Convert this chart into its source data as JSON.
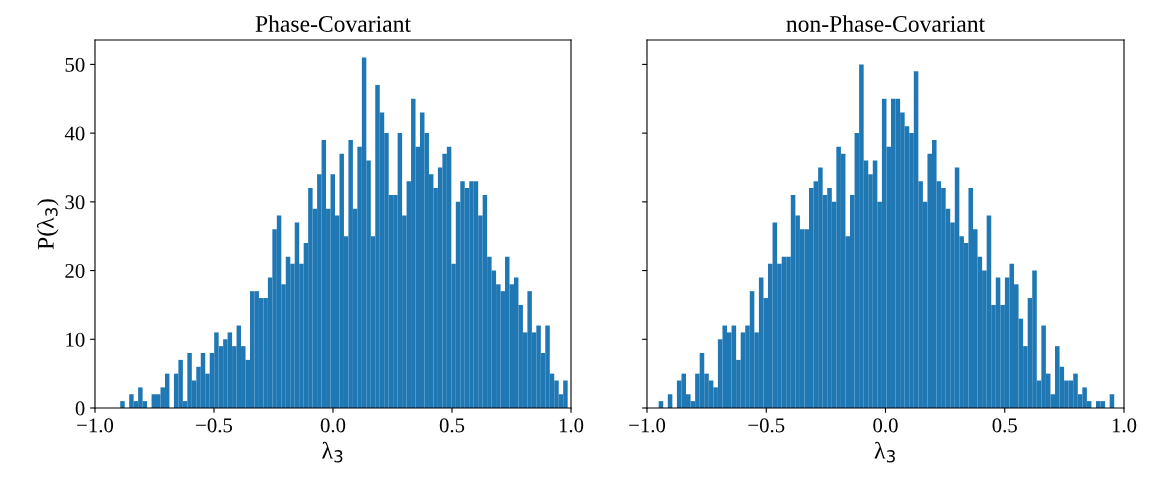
{
  "chart_data": [
    {
      "type": "histogram",
      "title": "Phase-Covariant",
      "xlabel": "λ$_{3}$",
      "ylabel": "P(λ$_{3}$)",
      "color": "#1f77b4",
      "bins": [
        -0.894,
        -0.8752,
        -0.8564,
        -0.8376,
        -0.8188,
        -0.8,
        -0.7812,
        -0.7624,
        -0.7436,
        -0.7248,
        -0.706,
        -0.6872,
        -0.6684,
        -0.6496,
        -0.6308,
        -0.612,
        -0.5932,
        -0.5744,
        -0.5556,
        -0.5368,
        -0.518,
        -0.4992,
        -0.4804,
        -0.4616,
        -0.4428,
        -0.424,
        -0.4052,
        -0.3864,
        -0.3676,
        -0.3488,
        -0.33,
        -0.3112,
        -0.2924,
        -0.2736,
        -0.2548,
        -0.236,
        -0.2172,
        -0.1984,
        -0.1796,
        -0.1608,
        -0.142,
        -0.1232,
        -0.1044,
        -0.0856,
        -0.0668,
        -0.048,
        -0.0292,
        -0.0104,
        0.0084,
        0.0272,
        0.046,
        0.0648,
        0.0836,
        0.1024,
        0.1212,
        0.14,
        0.1588,
        0.1776,
        0.1964,
        0.2152,
        0.234,
        0.2528,
        0.2716,
        0.2904,
        0.3092,
        0.328,
        0.3468,
        0.3656,
        0.3844,
        0.4032,
        0.422,
        0.4408,
        0.4596,
        0.4784,
        0.4972,
        0.516,
        0.5348,
        0.5536,
        0.5724,
        0.5912,
        0.61,
        0.6288,
        0.6476,
        0.6664,
        0.6852,
        0.704,
        0.7228,
        0.7416,
        0.7604,
        0.7792,
        0.798,
        0.8168,
        0.8356,
        0.8544,
        0.8732,
        0.892,
        0.9108,
        0.9296,
        0.9484,
        0.9672,
        0.986
      ],
      "values": [
        1,
        0,
        2,
        1,
        3,
        1,
        0,
        2,
        2,
        3,
        5,
        0,
        5,
        7,
        1,
        8,
        4,
        6,
        8,
        5,
        8,
        11,
        9,
        10,
        11,
        9,
        12,
        9,
        7,
        17,
        17,
        16,
        16,
        19,
        26,
        28,
        18,
        22,
        21,
        27,
        21,
        24,
        32,
        29,
        34,
        39,
        29,
        34,
        28,
        37,
        25,
        39,
        29,
        38,
        51,
        36,
        25,
        47,
        43,
        40,
        31,
        31,
        40,
        28,
        33,
        45,
        38,
        43,
        40,
        34,
        32,
        35,
        37,
        38,
        21,
        30,
        33,
        32,
        33,
        33,
        28,
        31,
        22,
        20,
        18,
        17,
        22,
        18,
        19,
        15,
        11,
        17,
        11,
        12,
        8,
        12,
        5,
        4,
        2,
        4
      ],
      "xlim": [
        -1.0,
        1.0
      ],
      "xticks": [
        {
          "value": -1.0,
          "label": "−1.0"
        },
        {
          "value": -0.5,
          "label": "−0.5"
        },
        {
          "value": 0,
          "label": "0.0"
        },
        {
          "value": 0.5,
          "label": "0.5"
        },
        {
          "value": 1,
          "label": "1.0"
        }
      ],
      "ylim": [
        0,
        53.55
      ],
      "yticks": [
        0,
        10,
        20,
        30,
        40,
        50
      ]
    },
    {
      "type": "histogram",
      "title": "non-Phase-Covariant",
      "xlabel": "λ$_{3}$",
      "color": "#1f77b4",
      "bins": [
        -0.951,
        -0.9319,
        -0.9128,
        -0.8937,
        -0.8746,
        -0.8555,
        -0.8364,
        -0.8173,
        -0.7982,
        -0.7791,
        -0.76,
        -0.7409,
        -0.7218,
        -0.7027,
        -0.6836,
        -0.6645,
        -0.6454,
        -0.6263,
        -0.6072,
        -0.5881,
        -0.569,
        -0.5499,
        -0.5308,
        -0.5117,
        -0.4926,
        -0.4735,
        -0.4544,
        -0.4353,
        -0.4162,
        -0.3971,
        -0.378,
        -0.3589,
        -0.3398,
        -0.3207,
        -0.3016,
        -0.2825,
        -0.2634,
        -0.2443,
        -0.2252,
        -0.2061,
        -0.187,
        -0.1679,
        -0.1488,
        -0.1297,
        -0.1106,
        -0.0915,
        -0.0724,
        -0.0533,
        -0.0342,
        -0.0151,
        0.004,
        0.0231,
        0.0422,
        0.0613,
        0.0804,
        0.0995,
        0.1186,
        0.1377,
        0.1568,
        0.1759,
        0.195,
        0.2141,
        0.2332,
        0.2523,
        0.2714,
        0.2905,
        0.3096,
        0.3287,
        0.3478,
        0.3669,
        0.386,
        0.4051,
        0.4242,
        0.4433,
        0.4624,
        0.4815,
        0.5006,
        0.5197,
        0.5388,
        0.5579,
        0.577,
        0.5961,
        0.6152,
        0.6343,
        0.6534,
        0.6725,
        0.6916,
        0.7107,
        0.7298,
        0.7489,
        0.768,
        0.7871,
        0.8062,
        0.8253,
        0.8444,
        0.8635,
        0.8826,
        0.9017,
        0.9208,
        0.9399,
        0.959
      ],
      "values": [
        1,
        0,
        2,
        0,
        4,
        5,
        2,
        1,
        5,
        8,
        5,
        4,
        3,
        10,
        12,
        11,
        12,
        7,
        11,
        12,
        17,
        11,
        19,
        16,
        21,
        27,
        21,
        22,
        22,
        31,
        28,
        26,
        26,
        32,
        33,
        35,
        31,
        32,
        30,
        38,
        37,
        25,
        31,
        40,
        50,
        36,
        34,
        36,
        30,
        45,
        38,
        45,
        45,
        43,
        41,
        40,
        49,
        33,
        30,
        37,
        39,
        33,
        32,
        29,
        27,
        35,
        25,
        24,
        32,
        26,
        22,
        20,
        28,
        15,
        19,
        15,
        19,
        21,
        18,
        13,
        9,
        16,
        20,
        4,
        12,
        5,
        2,
        9,
        6,
        4,
        4,
        5,
        2,
        3,
        1,
        0,
        1,
        1,
        0,
        2
      ],
      "xlim": [
        -1.0,
        1.0
      ],
      "xticks": [
        {
          "value": -1.0,
          "label": "−1.0"
        },
        {
          "value": -0.5,
          "label": "−0.5"
        },
        {
          "value": 0,
          "label": "0.0"
        },
        {
          "value": 0.5,
          "label": "0.5"
        },
        {
          "value": 1,
          "label": "1.0"
        }
      ],
      "ylim": [
        0,
        53.55
      ],
      "yticks": [
        0,
        10,
        20,
        30,
        40,
        50
      ],
      "tick_labels": "x"
    }
  ]
}
